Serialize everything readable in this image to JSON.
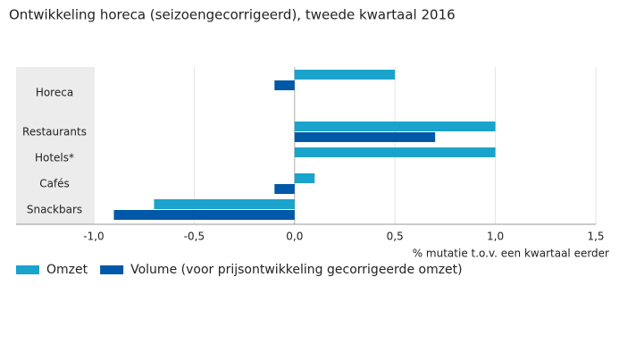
{
  "chart_data": {
    "type": "hbar",
    "title": "Ontwikkeling horeca (seizoengecorrigeerd), tweede kwartaal 2016",
    "categories": [
      "Horeca",
      "Restaurants",
      "Hotels*",
      "Cafés",
      "Snackbars"
    ],
    "series": [
      {
        "name": "Omzet",
        "color": "#1aa3cc",
        "values": [
          0.5,
          1.0,
          1.0,
          0.1,
          -0.7
        ]
      },
      {
        "name": "Volume (voor prijsontwikkeling gecorrigeerde omzet)",
        "color": "#0058a8",
        "values": [
          -0.1,
          0.7,
          null,
          -0.1,
          -0.9
        ]
      }
    ],
    "xlim": [
      -1.0,
      1.5
    ],
    "xticks": [
      {
        "value": -1.0,
        "label": "-1,0"
      },
      {
        "value": -0.5,
        "label": "-0,5"
      },
      {
        "value": 0,
        "label": "0,0"
      },
      {
        "value": 0.5,
        "label": "0,5"
      },
      {
        "value": 1.0,
        "label": "1,0"
      },
      {
        "value": 1.5,
        "label": "1,5"
      }
    ],
    "xlabel": "% mutatie t.o.v. een kwartaal eerder",
    "grid": true
  }
}
